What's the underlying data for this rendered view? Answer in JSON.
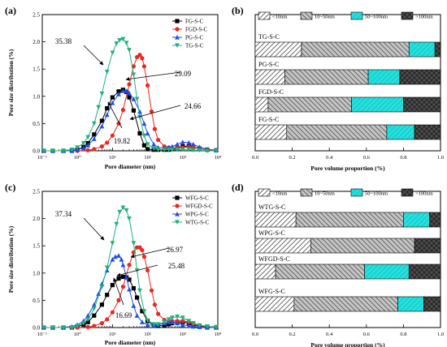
{
  "colors": {
    "black": "#000000",
    "red": "#e8281f",
    "blue": "#1f4fe6",
    "green": "#1fb27a",
    "cyan": "#22e1df",
    "dark_grey": "#4d4d4d",
    "light_grey": "#bdbdbd"
  },
  "chart_data": [
    {
      "type": "line",
      "panel_label": "(a)",
      "xlabel": "Pore diameter (nm)",
      "ylabel": "Pore size distribution (%)",
      "xscale": "log",
      "xlim": [
        0.1,
        10000
      ],
      "ylim": [
        0,
        2.5
      ],
      "x_ticks": [
        "10⁻¹",
        "10⁰",
        "10¹",
        "10²",
        "10³",
        "10⁴"
      ],
      "y_ticks": [
        "0.0",
        "0.5",
        "1.0",
        "1.5",
        "2.0",
        "2.5"
      ],
      "legend_position": "top-right",
      "series": [
        {
          "name": "FG-S-C",
          "marker": "square",
          "color": "black",
          "x": [
            0.11,
            0.2,
            0.4,
            0.7,
            1,
            1.5,
            2,
            3,
            5,
            7,
            10,
            15,
            20,
            25,
            30,
            40,
            60,
            80,
            100,
            150,
            200,
            300,
            400,
            500,
            700,
            1000,
            1500,
            2000,
            3000,
            5000,
            9000
          ],
          "y": [
            0.0,
            0.0,
            0.0,
            0.0,
            0.02,
            0.07,
            0.14,
            0.3,
            0.55,
            0.78,
            0.98,
            1.09,
            1.12,
            1.08,
            0.98,
            0.74,
            0.32,
            0.1,
            0.03,
            0.02,
            0.02,
            0.02,
            0.02,
            0.03,
            0.05,
            0.08,
            0.09,
            0.07,
            0.04,
            0.02,
            0.01
          ]
        },
        {
          "name": "FGD-S-C",
          "marker": "circle",
          "color": "red",
          "x": [
            0.11,
            0.2,
            0.4,
            0.7,
            1,
            2,
            3,
            5,
            7,
            10,
            15,
            20,
            30,
            40,
            50,
            60,
            70,
            80,
            100,
            130,
            160,
            200,
            300,
            400,
            500,
            700,
            1000,
            1500,
            2000,
            3000,
            5000,
            9000
          ],
          "y": [
            0.0,
            0.0,
            0.0,
            0.0,
            0.0,
            0.01,
            0.03,
            0.08,
            0.15,
            0.28,
            0.5,
            0.75,
            1.22,
            1.55,
            1.72,
            1.76,
            1.7,
            1.55,
            1.2,
            0.72,
            0.4,
            0.2,
            0.08,
            0.06,
            0.05,
            0.05,
            0.06,
            0.07,
            0.06,
            0.04,
            0.02,
            0.01
          ]
        },
        {
          "name": "PG-S-C",
          "marker": "triangle-up",
          "color": "blue",
          "x": [
            0.11,
            0.2,
            0.4,
            0.7,
            1,
            1.5,
            2,
            3,
            5,
            7,
            10,
            15,
            20,
            25,
            30,
            40,
            60,
            80,
            100,
            150,
            200,
            300,
            400,
            500,
            700,
            1000,
            1500,
            2000,
            3000,
            5000,
            9000
          ],
          "y": [
            0.0,
            0.0,
            0.0,
            0.0,
            0.02,
            0.05,
            0.1,
            0.22,
            0.45,
            0.66,
            0.88,
            1.04,
            1.1,
            1.1,
            1.06,
            0.95,
            0.72,
            0.5,
            0.32,
            0.12,
            0.06,
            0.05,
            0.06,
            0.08,
            0.12,
            0.16,
            0.15,
            0.12,
            0.07,
            0.03,
            0.01
          ]
        },
        {
          "name": "TG-S-C",
          "marker": "triangle-down",
          "color": "green",
          "x": [
            0.11,
            0.2,
            0.4,
            0.7,
            1,
            1.5,
            2,
            3,
            4,
            5,
            7,
            10,
            13,
            16,
            20,
            25,
            30,
            40,
            50,
            60,
            80,
            100,
            150,
            200,
            300,
            400,
            500,
            700,
            1000,
            1500,
            2000,
            3000,
            5000,
            9000
          ],
          "y": [
            0.0,
            0.0,
            0.0,
            0.02,
            0.06,
            0.14,
            0.25,
            0.5,
            0.8,
            1.05,
            1.45,
            1.8,
            1.97,
            2.03,
            2.05,
            1.98,
            1.85,
            1.4,
            0.95,
            0.62,
            0.28,
            0.12,
            0.04,
            0.02,
            0.02,
            0.02,
            0.02,
            0.02,
            0.02,
            0.02,
            0.01,
            0.01,
            0.0,
            0.0
          ]
        }
      ],
      "annotations": [
        {
          "text": "35.38",
          "target_series": "TG-S-C"
        },
        {
          "text": "29.09",
          "target_series": "FGD-S-C"
        },
        {
          "text": "24.66",
          "target_series": "PG-S-C"
        },
        {
          "text": "19.82",
          "target_series": "FG-S-C"
        }
      ]
    },
    {
      "type": "bar",
      "orientation": "horizontal",
      "stacked": true,
      "panel_label": "(b)",
      "xlabel": "Pore volume proportion (%)",
      "xlim": [
        0,
        1.0
      ],
      "x_ticks": [
        "0.0",
        "0.2",
        "0.4",
        "0.6",
        "0.8",
        "1.0"
      ],
      "legend": [
        "<10nm",
        "10~50nm",
        "50~100nm",
        ">100nm"
      ],
      "legend_position": "top",
      "categories": [
        "TG-S-C",
        "PG-S-C",
        "FGD-S-C",
        "FG-S-C"
      ],
      "series": [
        {
          "name": "<10nm",
          "values": [
            0.25,
            0.16,
            0.07,
            0.17
          ]
        },
        {
          "name": "10~50nm",
          "values": [
            0.58,
            0.45,
            0.45,
            0.54
          ]
        },
        {
          "name": "50~100nm",
          "values": [
            0.14,
            0.17,
            0.28,
            0.15
          ]
        },
        {
          "name": ">100nm",
          "values": [
            0.03,
            0.22,
            0.2,
            0.14
          ]
        }
      ]
    },
    {
      "type": "line",
      "panel_label": "(c)",
      "xlabel": "Pore diameter (nm)",
      "ylabel": "Pore size distribution (%)",
      "xscale": "log",
      "xlim": [
        0.1,
        10000
      ],
      "ylim": [
        0,
        2.5
      ],
      "x_ticks": [
        "10⁻¹",
        "10⁰",
        "10¹",
        "10²",
        "10³",
        "10⁴"
      ],
      "y_ticks": [
        "0.0",
        "0.5",
        "1.0",
        "1.5",
        "2.0",
        "2.5"
      ],
      "legend_position": "top-right",
      "series": [
        {
          "name": "WFG-S-C",
          "marker": "square",
          "color": "black",
          "x": [
            0.11,
            0.2,
            0.4,
            0.7,
            1,
            1.5,
            2,
            3,
            5,
            7,
            10,
            15,
            20,
            25,
            30,
            40,
            50,
            70,
            100,
            150,
            200,
            300,
            400,
            500,
            700,
            1000,
            1500,
            2000,
            3000,
            5000,
            9000
          ],
          "y": [
            0.0,
            0.0,
            0.0,
            0.0,
            0.02,
            0.05,
            0.1,
            0.22,
            0.42,
            0.6,
            0.78,
            0.9,
            0.93,
            0.92,
            0.88,
            0.72,
            0.55,
            0.3,
            0.12,
            0.04,
            0.03,
            0.04,
            0.06,
            0.08,
            0.1,
            0.1,
            0.08,
            0.05,
            0.03,
            0.01,
            0.0
          ]
        },
        {
          "name": "WFGD-S-C",
          "marker": "circle",
          "color": "red",
          "x": [
            0.11,
            0.2,
            0.4,
            0.7,
            1,
            2,
            3,
            5,
            7,
            10,
            15,
            20,
            30,
            40,
            50,
            60,
            70,
            80,
            100,
            130,
            160,
            200,
            300,
            400,
            500,
            700,
            1000,
            1500,
            2000,
            3000,
            5000,
            9000
          ],
          "y": [
            0.0,
            0.0,
            0.0,
            0.0,
            0.0,
            0.01,
            0.03,
            0.08,
            0.15,
            0.28,
            0.5,
            0.75,
            1.15,
            1.38,
            1.47,
            1.47,
            1.42,
            1.3,
            1.05,
            0.68,
            0.42,
            0.25,
            0.14,
            0.12,
            0.12,
            0.12,
            0.12,
            0.1,
            0.07,
            0.04,
            0.02,
            0.01
          ]
        },
        {
          "name": "WPG-S-C",
          "marker": "triangle-up",
          "color": "blue",
          "x": [
            0.11,
            0.2,
            0.4,
            0.7,
            1,
            1.5,
            2,
            3,
            4,
            5,
            7,
            10,
            12,
            15,
            18,
            20,
            25,
            30,
            40,
            50,
            70,
            100,
            150,
            200,
            300,
            400,
            500,
            700,
            1000,
            1500,
            2000,
            3000,
            5000,
            9000
          ],
          "y": [
            0.0,
            0.0,
            0.0,
            0.02,
            0.05,
            0.12,
            0.22,
            0.42,
            0.62,
            0.8,
            1.05,
            1.25,
            1.3,
            1.32,
            1.25,
            1.15,
            0.92,
            0.7,
            0.4,
            0.22,
            0.1,
            0.05,
            0.04,
            0.05,
            0.08,
            0.1,
            0.1,
            0.08,
            0.05,
            0.03,
            0.02,
            0.01,
            0.0,
            0.0
          ]
        },
        {
          "name": "WTG-S-C",
          "marker": "triangle-down",
          "color": "green",
          "x": [
            0.11,
            0.2,
            0.4,
            0.7,
            1,
            1.5,
            2,
            3,
            5,
            7,
            10,
            13,
            16,
            20,
            25,
            30,
            40,
            50,
            60,
            80,
            100,
            150,
            200,
            300,
            400,
            500,
            700,
            1000,
            1500,
            2000,
            3000,
            5000,
            9000
          ],
          "y": [
            0.0,
            0.0,
            0.0,
            0.0,
            0.03,
            0.08,
            0.15,
            0.35,
            0.75,
            1.1,
            1.55,
            1.9,
            2.12,
            2.2,
            2.15,
            2.0,
            1.55,
            1.05,
            0.68,
            0.3,
            0.13,
            0.06,
            0.06,
            0.1,
            0.15,
            0.18,
            0.2,
            0.18,
            0.12,
            0.08,
            0.04,
            0.02,
            0.01
          ]
        }
      ],
      "annotations": [
        {
          "text": "37.34",
          "target_series": "WTG-S-C"
        },
        {
          "text": "26.97",
          "target_series": "WFGD-S-C"
        },
        {
          "text": "25.48",
          "target_series": "WPG-S-C"
        },
        {
          "text": "16.69",
          "target_series": "WFG-S-C"
        }
      ]
    },
    {
      "type": "bar",
      "orientation": "horizontal",
      "stacked": true,
      "panel_label": "(d)",
      "xlabel": "Pore volume proportion (%)",
      "xlim": [
        0,
        1.0
      ],
      "x_ticks": [
        "0.0",
        "0.2",
        "0.4",
        "0.6",
        "0.8",
        "1.0"
      ],
      "legend": [
        "<10nm",
        "10~50nm",
        "50~100nm",
        ">100nm"
      ],
      "legend_position": "top",
      "categories": [
        "WTG-S-C",
        "WPG-S-C",
        "WFGD-S-C",
        "WFG-S-C"
      ],
      "series": [
        {
          "name": "<10nm",
          "values": [
            0.22,
            0.3,
            0.11,
            0.21
          ]
        },
        {
          "name": "10~50nm",
          "values": [
            0.58,
            0.56,
            0.48,
            0.56
          ]
        },
        {
          "name": "50~100nm",
          "values": [
            0.14,
            0.0,
            0.24,
            0.14
          ]
        },
        {
          "name": ">100nm",
          "values": [
            0.06,
            0.14,
            0.17,
            0.09
          ]
        }
      ]
    }
  ]
}
